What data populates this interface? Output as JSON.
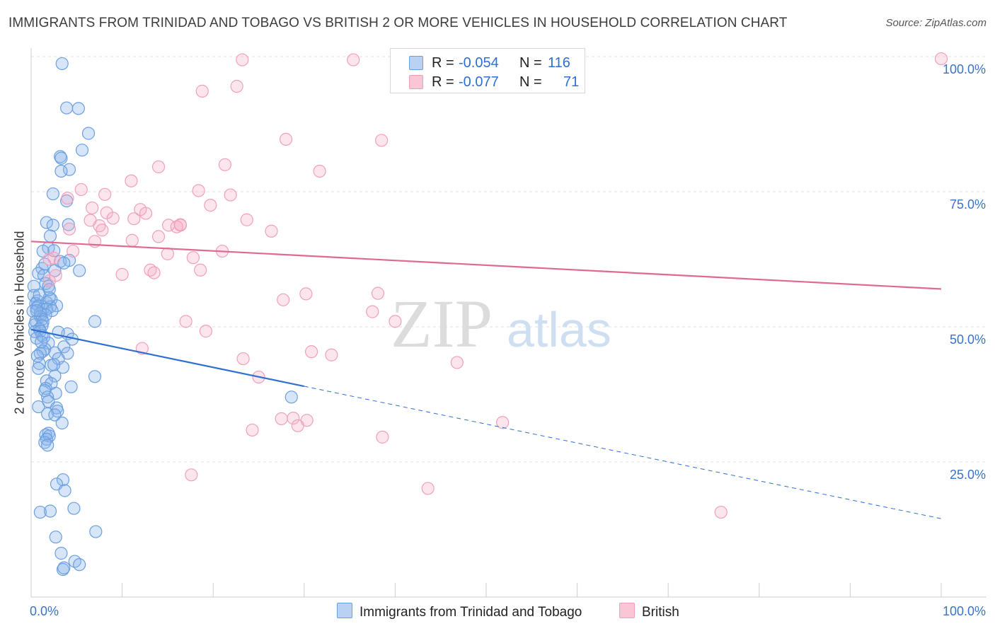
{
  "chart_data": {
    "type": "scatter",
    "title": "IMMIGRANTS FROM TRINIDAD AND TOBAGO VS BRITISH 2 OR MORE VEHICLES IN HOUSEHOLD CORRELATION CHART",
    "source": "Source: ZipAtlas.com",
    "ylabel": "2 or more Vehicles in Household",
    "xlim": [
      0,
      100
    ],
    "ylim": [
      0,
      100
    ],
    "x_tick_labels": [
      {
        "value": 0,
        "label": "0.0%"
      },
      {
        "value": 100,
        "label": "100.0%"
      }
    ],
    "y_tick_labels": [
      {
        "value": 25,
        "label": "25.0%"
      },
      {
        "value": 50,
        "label": "50.0%"
      },
      {
        "value": 75,
        "label": "75.0%"
      },
      {
        "value": 100,
        "label": "100.0%"
      }
    ],
    "watermark": {
      "zip": "ZIP",
      "atlas": "atlas"
    },
    "grid": true,
    "legend_position": "top-center",
    "legend": [
      {
        "r_label": "R =",
        "r_value": "-0.054",
        "n_label": "N =",
        "n_value": "116"
      },
      {
        "r_label": "R =",
        "r_value": "-0.077",
        "n_label": "N =",
        "n_value": "71"
      }
    ],
    "series": [
      {
        "name": "Immigrants from Trinidad and Tobago",
        "color": "#6a9fe0",
        "line_color": "#2f6fd0",
        "trend": {
          "x0": 0,
          "y0": 49.5,
          "x_solid_end": 30,
          "x1": 100,
          "y1": 14.5
        },
        "points": [
          [
            3.4,
            98.7
          ],
          [
            3.9,
            90.5
          ],
          [
            5.2,
            90.4
          ],
          [
            6.3,
            85.8
          ],
          [
            5.6,
            82.7
          ],
          [
            3.2,
            81.5
          ],
          [
            3.3,
            81.2
          ],
          [
            4.2,
            79.1
          ],
          [
            3.3,
            78.8
          ],
          [
            2.4,
            74.6
          ],
          [
            3.9,
            73.3
          ],
          [
            1.7,
            69.3
          ],
          [
            2.4,
            68.8
          ],
          [
            4.1,
            68.9
          ],
          [
            2.1,
            66.8
          ],
          [
            1.9,
            64.6
          ],
          [
            2.5,
            64.1
          ],
          [
            1.3,
            64.0
          ],
          [
            3.2,
            62.1
          ],
          [
            4.2,
            62.3
          ],
          [
            3.6,
            61.8
          ],
          [
            1.2,
            60.8
          ],
          [
            2.6,
            60.4
          ],
          [
            5.3,
            60.4
          ],
          [
            0.8,
            59.9
          ],
          [
            1.4,
            59.5
          ],
          [
            1.6,
            58.0
          ],
          [
            1.9,
            57.5
          ],
          [
            0.3,
            57.5
          ],
          [
            0.3,
            55.8
          ],
          [
            2.2,
            55.1
          ],
          [
            0.7,
            54.8
          ],
          [
            0.5,
            54.3
          ],
          [
            1.7,
            54.5
          ],
          [
            0.8,
            53.9
          ],
          [
            2.8,
            53.9
          ],
          [
            2.1,
            53.7
          ],
          [
            0.6,
            53.5
          ],
          [
            1.3,
            53.3
          ],
          [
            1.7,
            53.3
          ],
          [
            2.3,
            53.0
          ],
          [
            0.2,
            52.9
          ],
          [
            1.0,
            52.5
          ],
          [
            1.6,
            52.2
          ],
          [
            1.0,
            51.9
          ],
          [
            1.2,
            51.4
          ],
          [
            0.5,
            51.0
          ],
          [
            1.3,
            50.9
          ],
          [
            7.0,
            51.0
          ],
          [
            0.4,
            50.4
          ],
          [
            1.2,
            50.2
          ],
          [
            0.9,
            49.6
          ],
          [
            0.4,
            49.1
          ],
          [
            1.0,
            49.2
          ],
          [
            4.0,
            48.7
          ],
          [
            1.2,
            48.4
          ],
          [
            1.4,
            48.1
          ],
          [
            0.6,
            47.9
          ],
          [
            4.5,
            47.7
          ],
          [
            1.9,
            47.0
          ],
          [
            3.6,
            46.3
          ],
          [
            1.5,
            45.9
          ],
          [
            1.3,
            45.5
          ],
          [
            1.0,
            45.1
          ],
          [
            4.0,
            45.1
          ],
          [
            2.6,
            45.2
          ],
          [
            0.7,
            44.6
          ],
          [
            3.0,
            44.1
          ],
          [
            0.9,
            43.2
          ],
          [
            2.2,
            42.9
          ],
          [
            3.5,
            42.5
          ],
          [
            0.8,
            42.3
          ],
          [
            2.6,
            40.9
          ],
          [
            1.7,
            40.0
          ],
          [
            7.0,
            40.8
          ],
          [
            2.2,
            39.5
          ],
          [
            1.6,
            38.6
          ],
          [
            4.4,
            38.9
          ],
          [
            1.5,
            38.2
          ],
          [
            2.7,
            37.7
          ],
          [
            1.8,
            37.0
          ],
          [
            1.9,
            36.2
          ],
          [
            28.6,
            37.0
          ],
          [
            0.8,
            35.2
          ],
          [
            2.8,
            35.0
          ],
          [
            2.9,
            34.4
          ],
          [
            1.8,
            33.9
          ],
          [
            2.6,
            33.7
          ],
          [
            3.4,
            32.2
          ],
          [
            1.9,
            30.3
          ],
          [
            1.6,
            30.0
          ],
          [
            2.0,
            29.8
          ],
          [
            1.7,
            29.2
          ],
          [
            1.5,
            28.6
          ],
          [
            1.8,
            28.1
          ],
          [
            3.5,
            21.7
          ],
          [
            2.8,
            20.9
          ],
          [
            3.7,
            19.7
          ],
          [
            2.1,
            15.9
          ],
          [
            1.0,
            15.7
          ],
          [
            4.7,
            16.4
          ],
          [
            7.1,
            12.1
          ],
          [
            2.7,
            11.1
          ],
          [
            3.3,
            8.1
          ],
          [
            4.8,
            6.6
          ],
          [
            5.3,
            6.0
          ],
          [
            3.5,
            5.1
          ],
          [
            3.6,
            5.4
          ],
          [
            1.5,
            61.6
          ],
          [
            2.0,
            55.4
          ],
          [
            0.9,
            55.9
          ],
          [
            3.0,
            49.0
          ],
          [
            2.5,
            43.0
          ],
          [
            1.1,
            47.2
          ],
          [
            0.6,
            53.0
          ],
          [
            2.0,
            56.9
          ]
        ]
      },
      {
        "name": "British",
        "color": "#f0a0bb",
        "line_color": "#e0698f",
        "trend": {
          "x0": 0,
          "y0": 65.8,
          "x_solid_end": 100,
          "x1": 100,
          "y1": 57.0
        },
        "points": [
          [
            23.2,
            99.4
          ],
          [
            35.4,
            99.4
          ],
          [
            100,
            99.6
          ],
          [
            18.8,
            93.6
          ],
          [
            22.6,
            94.5
          ],
          [
            28.0,
            84.7
          ],
          [
            38.5,
            84.5
          ],
          [
            14.0,
            79.6
          ],
          [
            21.3,
            80.0
          ],
          [
            31.7,
            78.8
          ],
          [
            11.0,
            77.0
          ],
          [
            18.4,
            75.2
          ],
          [
            21.9,
            74.4
          ],
          [
            5.5,
            75.4
          ],
          [
            8.1,
            74.5
          ],
          [
            4.0,
            73.8
          ],
          [
            8.3,
            71.1
          ],
          [
            12.0,
            71.7
          ],
          [
            12.6,
            71.0
          ],
          [
            19.7,
            72.5
          ],
          [
            6.5,
            69.7
          ],
          [
            9.0,
            70.1
          ],
          [
            23.7,
            69.8
          ],
          [
            7.5,
            68.7
          ],
          [
            15.1,
            68.8
          ],
          [
            16.4,
            68.8
          ],
          [
            16.0,
            68.5
          ],
          [
            16.4,
            68.9
          ],
          [
            4.2,
            68.1
          ],
          [
            7.8,
            67.9
          ],
          [
            26.4,
            67.7
          ],
          [
            14.0,
            66.7
          ],
          [
            11.1,
            66.0
          ],
          [
            7.0,
            65.8
          ],
          [
            17.8,
            62.8
          ],
          [
            15.0,
            63.5
          ],
          [
            2.5,
            62.7
          ],
          [
            2.0,
            62.5
          ],
          [
            13.1,
            60.5
          ],
          [
            13.5,
            60.0
          ],
          [
            10.0,
            59.7
          ],
          [
            2.7,
            59.5
          ],
          [
            2.0,
            58.5
          ],
          [
            38.1,
            56.2
          ],
          [
            30.2,
            56.1
          ],
          [
            27.7,
            55.0
          ],
          [
            37.5,
            52.8
          ],
          [
            40.0,
            51.0
          ],
          [
            17.0,
            51.0
          ],
          [
            19.2,
            49.2
          ],
          [
            12.2,
            46.0
          ],
          [
            30.8,
            45.4
          ],
          [
            33.0,
            44.8
          ],
          [
            23.3,
            44.1
          ],
          [
            46.8,
            43.4
          ],
          [
            25.0,
            40.7
          ],
          [
            28.8,
            33.1
          ],
          [
            30.3,
            32.7
          ],
          [
            29.3,
            31.7
          ],
          [
            51.8,
            32.3
          ],
          [
            24.3,
            30.9
          ],
          [
            38.6,
            29.6
          ],
          [
            43.6,
            20.1
          ],
          [
            17.6,
            22.6
          ],
          [
            75.8,
            15.7
          ],
          [
            27.5,
            33.0
          ],
          [
            18.6,
            60.5
          ],
          [
            11.3,
            70.0
          ],
          [
            4.6,
            64.0
          ],
          [
            6.7,
            72.0
          ],
          [
            21.0,
            64.0
          ]
        ]
      }
    ]
  }
}
